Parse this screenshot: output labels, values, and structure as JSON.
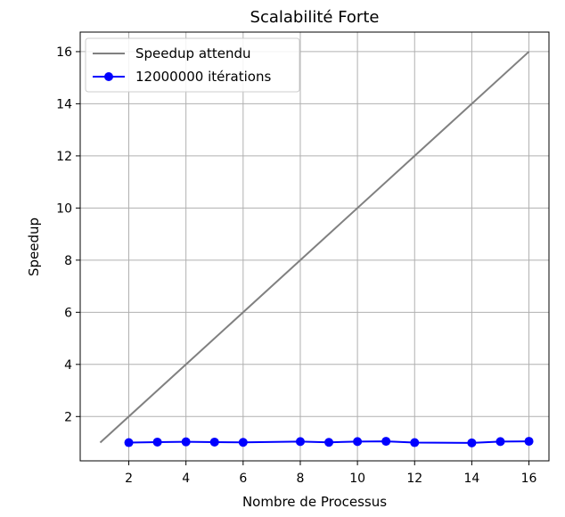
{
  "chart_data": {
    "type": "line",
    "title": "Scalabilité Forte",
    "xlabel": "Nombre de Processus",
    "ylabel": "Speedup",
    "xlim": [
      0.3,
      16.7
    ],
    "ylim": [
      0.3,
      16.75
    ],
    "xticks": [
      2,
      4,
      6,
      8,
      10,
      12,
      14,
      16
    ],
    "yticks": [
      2,
      4,
      6,
      8,
      10,
      12,
      14,
      16
    ],
    "grid": true,
    "legend_position": "top-left",
    "series": [
      {
        "name": "Speedup attendu",
        "color": "#808080",
        "marker": "none",
        "x": [
          1,
          16
        ],
        "y": [
          1,
          16
        ]
      },
      {
        "name": "12000000 itérations",
        "color": "#0000ff",
        "marker": "circle",
        "x": [
          2,
          3,
          4,
          5,
          6,
          8,
          9,
          10,
          11,
          12,
          14,
          15,
          16
        ],
        "y": [
          1.0,
          1.02,
          1.03,
          1.02,
          1.01,
          1.04,
          1.01,
          1.04,
          1.05,
          1.0,
          0.99,
          1.04,
          1.05
        ]
      }
    ]
  }
}
